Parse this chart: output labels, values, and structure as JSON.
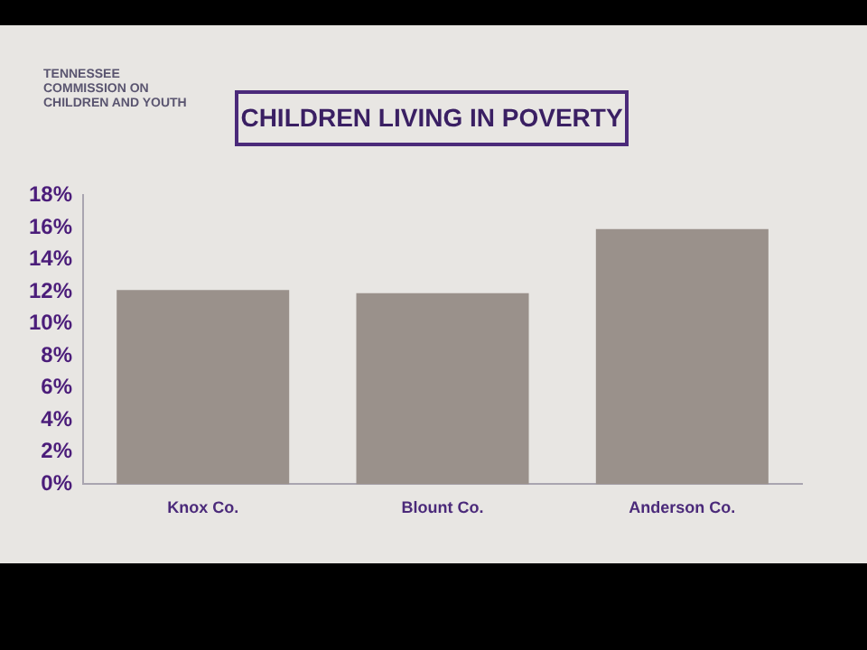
{
  "chart_data": {
    "type": "bar",
    "title": "CHILDREN LIVING IN POVERTY",
    "annotations": [
      "TENNESSEE COMMISSION ON CHILDREN AND YOUTH"
    ],
    "categories": [
      "Knox Co.",
      "Blount Co.",
      "Anderson Co."
    ],
    "values": [
      12.1,
      11.9,
      15.9
    ],
    "color": "#9a918b",
    "ylim": [
      0,
      18
    ],
    "yticks": [
      {
        "value": 0,
        "label": "0%"
      },
      {
        "value": 2,
        "label": "2%"
      },
      {
        "value": 4,
        "label": "4%"
      },
      {
        "value": 6,
        "label": "6%"
      },
      {
        "value": 8,
        "label": "8%"
      },
      {
        "value": 10,
        "label": "10%"
      },
      {
        "value": 12,
        "label": "12%"
      },
      {
        "value": 14,
        "label": "14%"
      },
      {
        "value": 16,
        "label": "16%"
      },
      {
        "value": 18,
        "label": "18%"
      }
    ],
    "grid": false,
    "legend": false
  }
}
